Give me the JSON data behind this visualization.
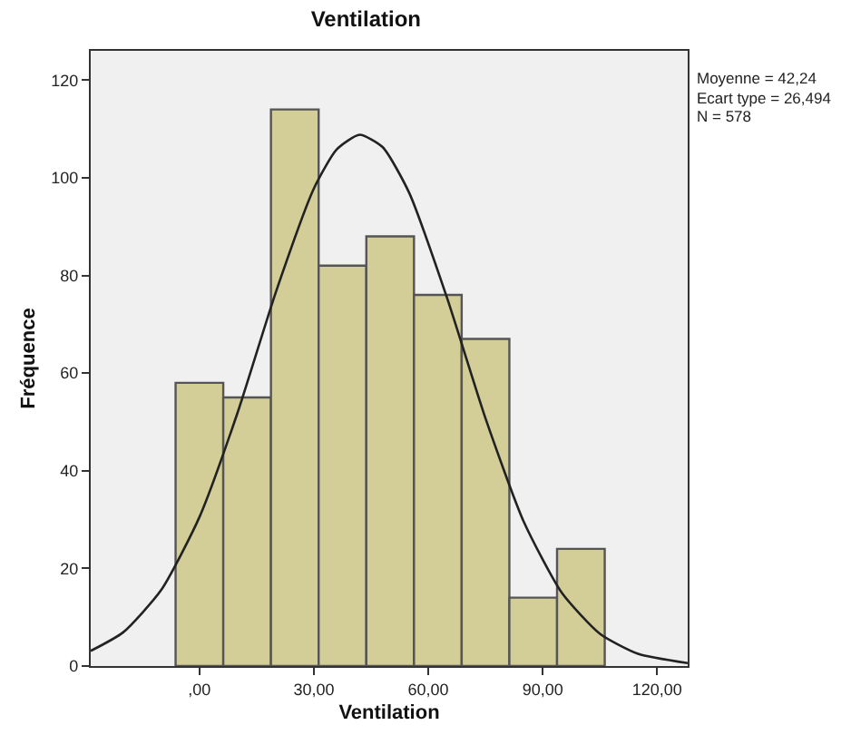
{
  "chart_data": {
    "type": "histogram",
    "title": "Ventilation",
    "xlabel": "Ventilation",
    "ylabel": "Fréquence",
    "bins": [
      -6.25,
      6.25,
      18.75,
      31.25,
      43.75,
      56.25,
      68.75,
      81.25,
      93.75,
      106.25
    ],
    "values": [
      58,
      55,
      114,
      82,
      88,
      76,
      67,
      14,
      24
    ],
    "color": "#d3ce98",
    "series": [
      {
        "type": "line",
        "color": "#222222",
        "x": [
          -28.5,
          -20,
          -10,
          0,
          10,
          20,
          30,
          36,
          42,
          48,
          55,
          65,
          75,
          85,
          95,
          105,
          115,
          128
        ],
        "values": [
          3.1,
          6.9,
          15.6,
          30.5,
          51.9,
          76.5,
          97.8,
          105.8,
          108.8,
          106.3,
          96.9,
          75.2,
          50.7,
          29.6,
          15.0,
          6.6,
          2.5,
          0.6
        ]
      }
    ],
    "xlim": [
      -28.5,
      128
    ],
    "xticks": [
      {
        "value": 0,
        "label": ",00"
      },
      {
        "value": 30,
        "label": "30,00"
      },
      {
        "value": 60,
        "label": "60,00"
      },
      {
        "value": 90,
        "label": "90,00"
      },
      {
        "value": 120,
        "label": "120,00"
      }
    ],
    "ylim": [
      0,
      126
    ],
    "yticks": [
      0,
      20,
      40,
      60,
      80,
      100,
      120
    ],
    "grid": false,
    "annotations": [
      "Moyenne = 42,24",
      "Ecart type = 26,494",
      "N = 578"
    ]
  }
}
